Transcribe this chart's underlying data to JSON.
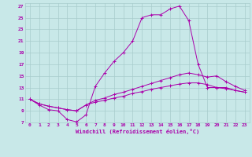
{
  "title": "",
  "xlabel": "Windchill (Refroidissement éolien,°C)",
  "ylabel": "",
  "bg_color": "#c8e8e8",
  "grid_color": "#a8cccc",
  "line_color": "#aa00aa",
  "xlim": [
    -0.5,
    23.5
  ],
  "ylim": [
    7,
    27.5
  ],
  "xticks": [
    0,
    1,
    2,
    3,
    4,
    5,
    6,
    7,
    8,
    9,
    10,
    11,
    12,
    13,
    14,
    15,
    16,
    17,
    18,
    19,
    20,
    21,
    22,
    23
  ],
  "yticks": [
    7,
    9,
    11,
    13,
    15,
    17,
    19,
    21,
    23,
    25,
    27
  ],
  "lines": [
    {
      "x": [
        0,
        1,
        2,
        3,
        4,
        5,
        6,
        7,
        8,
        9,
        10,
        11,
        12,
        13,
        14,
        15,
        16,
        17,
        18,
        19,
        20,
        21,
        22,
        23
      ],
      "y": [
        11,
        10,
        9.2,
        9.0,
        7.5,
        7.1,
        8.3,
        13.2,
        15.5,
        17.5,
        19.0,
        21.0,
        25.0,
        25.5,
        25.5,
        26.5,
        27.0,
        24.5,
        17.0,
        13.0,
        13.0,
        13.0,
        12.5,
        12.2
      ]
    },
    {
      "x": [
        0,
        1,
        2,
        3,
        4,
        5,
        6,
        7,
        8,
        9,
        10,
        11,
        12,
        13,
        14,
        15,
        16,
        17,
        18,
        19,
        20,
        21,
        22,
        23
      ],
      "y": [
        11,
        10.2,
        9.8,
        9.5,
        9.2,
        9.0,
        10.0,
        10.8,
        11.2,
        11.8,
        12.2,
        12.7,
        13.2,
        13.7,
        14.2,
        14.7,
        15.2,
        15.5,
        15.2,
        14.8,
        15.0,
        14.0,
        13.2,
        12.5
      ]
    },
    {
      "x": [
        0,
        1,
        2,
        3,
        4,
        5,
        6,
        7,
        8,
        9,
        10,
        11,
        12,
        13,
        14,
        15,
        16,
        17,
        18,
        19,
        20,
        21,
        22,
        23
      ],
      "y": [
        11,
        10.2,
        9.8,
        9.5,
        9.2,
        9.0,
        10.0,
        10.5,
        10.8,
        11.2,
        11.5,
        12.0,
        12.3,
        12.7,
        13.0,
        13.3,
        13.6,
        13.8,
        13.8,
        13.5,
        13.0,
        12.8,
        12.5,
        12.2
      ]
    }
  ]
}
